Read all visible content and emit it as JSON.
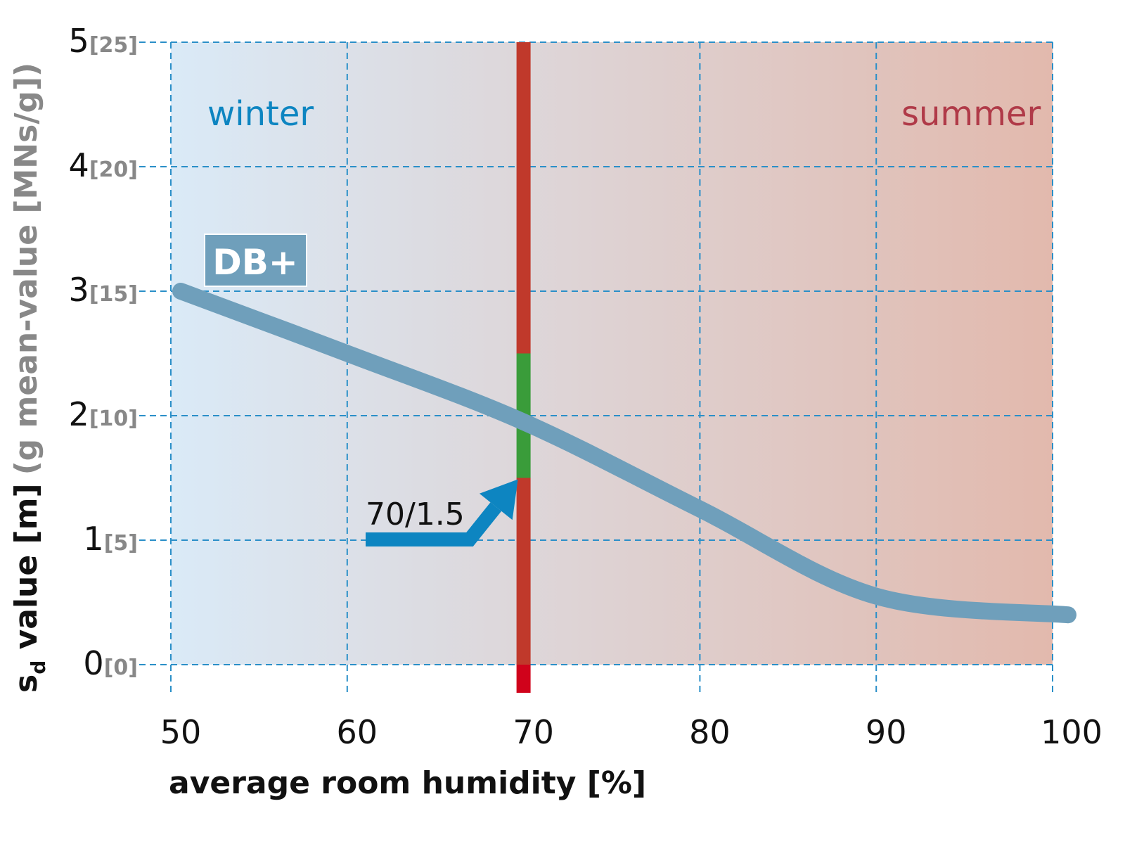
{
  "chart_data": {
    "type": "line",
    "title": "",
    "xlabel": "average room humidity [%]",
    "ylabel": {
      "main_prefix": "s",
      "subscript": "d",
      "main_suffix": " value [m]",
      "secondary": "(g mean-value [MNs/g])"
    },
    "xlim": [
      50,
      100
    ],
    "ylim": [
      0,
      5
    ],
    "x_ticks": [
      "50",
      "60",
      "70",
      "80",
      "90",
      "100"
    ],
    "y_ticks": [
      {
        "value": 0,
        "main": "0",
        "secondary": "[0]"
      },
      {
        "value": 1,
        "main": "1",
        "secondary": "[5]"
      },
      {
        "value": 2,
        "main": "2",
        "secondary": "[10]"
      },
      {
        "value": 3,
        "main": "3",
        "secondary": "[15]"
      },
      {
        "value": 4,
        "main": "4",
        "secondary": "[20]"
      },
      {
        "value": 5,
        "main": "5",
        "secondary": "[25]"
      }
    ],
    "grid": true,
    "series": [
      {
        "name": "DB+",
        "color": "#6f9fbb",
        "x": [
          50,
          60,
          70,
          80,
          90,
          100
        ],
        "y": [
          3.0,
          2.5,
          1.95,
          1.25,
          0.55,
          0.4
        ]
      }
    ],
    "reference_line": {
      "x": 70,
      "color": "#c0392b",
      "highlight_color": "#3a9c3a",
      "highlight_range": [
        1.5,
        2.5
      ],
      "below_zero_color": "#d0021b"
    },
    "annotations": [
      {
        "text": "70/1.5",
        "target_x": 70,
        "target_y": 1.5,
        "color": "#0d85c1"
      }
    ],
    "regions": [
      {
        "label": "winter",
        "color": "#0d85c1"
      },
      {
        "label": "summer",
        "color": "#b03a48"
      }
    ],
    "background_gradient": [
      "#daeaf7",
      "#e2b9ad"
    ],
    "secondary_tick_color": "#888888",
    "grid_color": "#2a8fc8"
  }
}
